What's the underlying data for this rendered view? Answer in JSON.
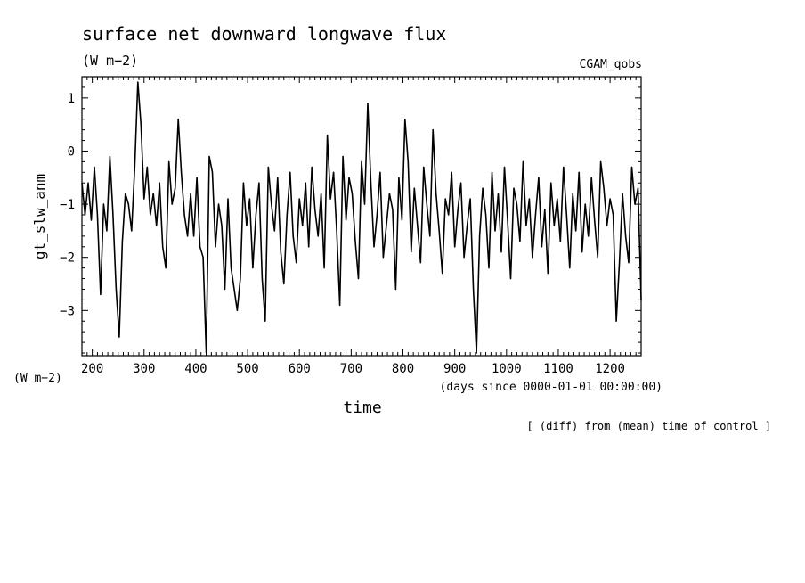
{
  "chart_data": {
    "type": "line",
    "title": "surface net downward longwave flux",
    "units": "(W m−2)",
    "dataset": "CGAM_qobs",
    "ylabel": "gt_slw_anm",
    "ylabel_units": "(W m−2)",
    "xlabel": "time",
    "xlabel_units": "(days since 0000-01-01 00:00:00)",
    "footnote": "[ (diff) from (mean) time of control ]",
    "xlim": [
      180,
      1260
    ],
    "ylim": [
      -3.85,
      1.4
    ],
    "xticks": [
      200,
      300,
      400,
      500,
      600,
      700,
      800,
      900,
      1000,
      1100,
      1200
    ],
    "yticks": [
      1,
      0,
      -1,
      -2,
      -3
    ],
    "ytick_labels": [
      "1",
      "0",
      "−1",
      "−2",
      "−3"
    ],
    "grid": false,
    "series": [
      {
        "x": [
          180,
          186,
          192,
          198,
          204,
          210,
          216,
          222,
          228,
          234,
          240,
          246,
          252,
          258,
          264,
          270,
          276,
          282,
          288,
          294,
          300,
          306,
          312,
          318,
          324,
          330,
          336,
          342,
          348,
          354,
          360,
          366,
          372,
          378,
          384,
          390,
          396,
          402,
          408,
          414,
          420,
          426,
          432,
          438,
          444,
          450,
          456,
          462,
          468,
          474,
          480,
          486,
          492,
          498,
          504,
          510,
          516,
          522,
          528,
          534,
          540,
          546,
          552,
          558,
          564,
          570,
          576,
          582,
          588,
          594,
          600,
          606,
          612,
          618,
          624,
          630,
          636,
          642,
          648,
          654,
          660,
          666,
          672,
          678,
          684,
          690,
          696,
          702,
          708,
          714,
          720,
          726,
          732,
          738,
          744,
          750,
          756,
          762,
          768,
          774,
          780,
          786,
          792,
          798,
          804,
          810,
          816,
          822,
          828,
          834,
          840,
          846,
          852,
          858,
          864,
          870,
          876,
          882,
          888,
          894,
          900,
          906,
          912,
          918,
          924,
          930,
          936,
          942,
          948,
          954,
          960,
          966,
          972,
          978,
          984,
          990,
          996,
          1002,
          1008,
          1014,
          1020,
          1026,
          1032,
          1038,
          1044,
          1050,
          1056,
          1062,
          1068,
          1074,
          1080,
          1086,
          1092,
          1098,
          1104,
          1110,
          1116,
          1122,
          1128,
          1134,
          1140,
          1146,
          1152,
          1158,
          1164,
          1170,
          1176,
          1182,
          1188,
          1194,
          1200,
          1206,
          1212,
          1218,
          1224,
          1230,
          1236,
          1242,
          1248,
          1254,
          1260
        ],
        "values": [
          -0.6,
          -1.2,
          -0.6,
          -1.3,
          -0.3,
          -1.2,
          -2.7,
          -1.0,
          -1.5,
          -0.1,
          -1.2,
          -2.6,
          -3.5,
          -1.7,
          -0.8,
          -1.0,
          -1.5,
          -0.3,
          1.3,
          0.5,
          -0.9,
          -0.3,
          -1.2,
          -0.8,
          -1.4,
          -0.6,
          -1.8,
          -2.2,
          -0.2,
          -1.0,
          -0.7,
          0.6,
          -0.4,
          -1.2,
          -1.6,
          -0.8,
          -1.6,
          -0.5,
          -1.8,
          -2.0,
          -3.8,
          -0.1,
          -0.4,
          -1.8,
          -1.0,
          -1.4,
          -2.6,
          -0.9,
          -2.2,
          -2.6,
          -3.0,
          -2.4,
          -0.6,
          -1.4,
          -0.9,
          -2.2,
          -1.2,
          -0.6,
          -2.4,
          -3.2,
          -0.3,
          -1.0,
          -1.5,
          -0.5,
          -1.9,
          -2.5,
          -1.2,
          -0.4,
          -1.6,
          -2.1,
          -0.9,
          -1.4,
          -0.6,
          -1.8,
          -0.3,
          -1.1,
          -1.6,
          -0.8,
          -2.2,
          0.3,
          -0.9,
          -0.4,
          -1.5,
          -2.9,
          -0.1,
          -1.3,
          -0.5,
          -0.8,
          -1.7,
          -2.4,
          -0.2,
          -1.0,
          0.9,
          -0.6,
          -1.8,
          -1.2,
          -0.4,
          -2.0,
          -1.4,
          -0.8,
          -1.1,
          -2.6,
          -0.5,
          -1.3,
          0.6,
          -0.2,
          -1.9,
          -0.7,
          -1.4,
          -2.1,
          -0.3,
          -1.0,
          -1.6,
          0.4,
          -0.8,
          -1.5,
          -2.3,
          -0.9,
          -1.2,
          -0.4,
          -1.8,
          -1.1,
          -0.6,
          -2.0,
          -1.4,
          -0.9,
          -2.6,
          -3.8,
          -1.6,
          -0.7,
          -1.2,
          -2.2,
          -0.4,
          -1.5,
          -0.8,
          -1.9,
          -0.3,
          -1.3,
          -2.4,
          -0.7,
          -1.0,
          -1.7,
          -0.2,
          -1.4,
          -0.9,
          -2.0,
          -1.2,
          -0.5,
          -1.8,
          -1.1,
          -2.3,
          -0.6,
          -1.4,
          -0.9,
          -1.7,
          -0.3,
          -1.2,
          -2.2,
          -0.8,
          -1.5,
          -0.4,
          -1.9,
          -1.0,
          -1.6,
          -0.5,
          -1.3,
          -2.0,
          -0.2,
          -0.7,
          -1.4,
          -0.9,
          -1.2,
          -3.2,
          -2.1,
          -0.8,
          -1.6,
          -2.1,
          -0.3,
          -1.0,
          -0.7,
          -2.8
        ]
      }
    ]
  }
}
